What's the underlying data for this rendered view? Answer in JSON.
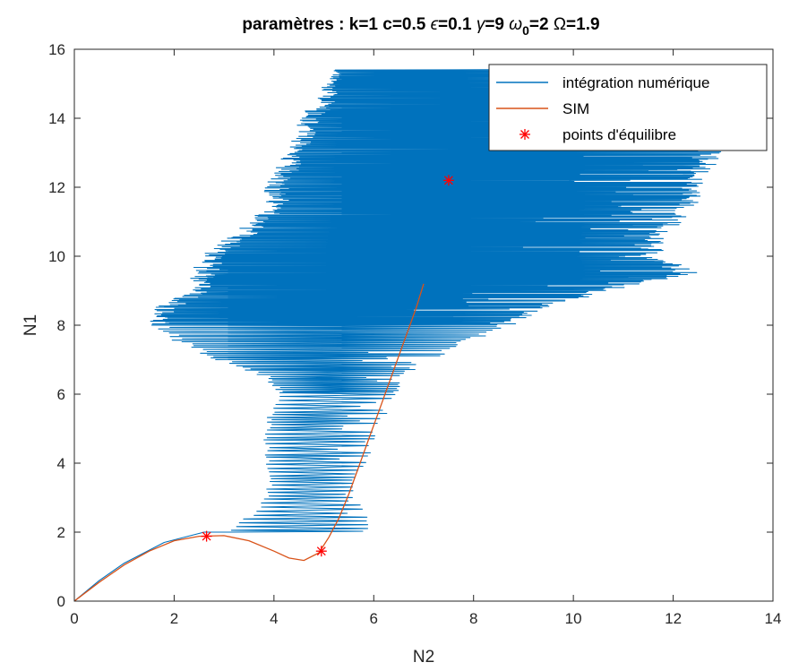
{
  "chart_data": {
    "type": "line",
    "title": {
      "prefix": "paramètres : k=1  c=0.5  ",
      "epsilon_symbol": "ϵ",
      "epsilon_value": "=0.1  ",
      "gamma_symbol": "γ",
      "gamma_value": "=9  ",
      "omega0_symbol": "ω",
      "omega0_sub": "0",
      "omega0_value": "=2  ",
      "Omega_symbol": "Ω",
      "Omega_value": "=1.9"
    },
    "xlabel": "N2",
    "ylabel": "N1",
    "xlim": [
      0,
      14
    ],
    "ylim": [
      0,
      16
    ],
    "xticks": [
      0,
      2,
      4,
      6,
      8,
      10,
      12,
      14
    ],
    "yticks": [
      0,
      2,
      4,
      6,
      8,
      10,
      12,
      14,
      16
    ],
    "grid": false,
    "legend_position": "top-right",
    "legend": [
      {
        "label": "intégration numérique",
        "color": "#0072BD",
        "marker": "line"
      },
      {
        "label": "SIM",
        "color": "#D95319",
        "marker": "line"
      },
      {
        "label": "points d'équilibre",
        "color": "#FF0000",
        "marker": "asterisk"
      }
    ],
    "series": [
      {
        "name": "intégration numérique",
        "color": "#0072BD",
        "style": "oscillating trajectory",
        "x": [
          0,
          0.5,
          1.0,
          1.8,
          2.6,
          3.2,
          3.8,
          4.4,
          5.0,
          5.3,
          5.5,
          5.5,
          5.6,
          5.7,
          5.8,
          5.9,
          6.1,
          6.3,
          6.5,
          6.8,
          7.0,
          7.4,
          7.8,
          8.2,
          8.6,
          9.0,
          9.5
        ],
        "y": [
          0,
          0.6,
          1.1,
          1.7,
          2.0,
          2.2,
          2.35,
          2.5,
          2.8,
          3.3,
          3.9,
          4.5,
          5.1,
          5.7,
          6.2,
          6.8,
          7.3,
          7.8,
          8.3,
          8.8,
          9.2,
          9.6,
          10.2,
          11.0,
          12.0,
          13.0,
          14.2
        ],
        "envelope": {
          "y": [
            2.0,
            2.5,
            3.0,
            3.5,
            4.0,
            4.5,
            5.0,
            5.5,
            6.0,
            6.5,
            7.0,
            7.5,
            8.0,
            8.5,
            9.0,
            9.5,
            10.0,
            10.5,
            11.0,
            11.5,
            12.0,
            12.5,
            13.0,
            13.5,
            14.0,
            14.5,
            15.0,
            15.4
          ],
          "x_min": [
            3.0,
            3.5,
            3.8,
            3.9,
            3.8,
            3.8,
            3.8,
            3.9,
            4.1,
            3.8,
            2.8,
            2.0,
            1.5,
            1.6,
            2.3,
            2.3,
            2.5,
            3.0,
            3.5,
            3.8,
            3.8,
            4.0,
            4.2,
            4.4,
            4.5,
            4.8,
            5.0,
            5.2
          ],
          "x_max": [
            6.0,
            5.9,
            5.6,
            5.6,
            5.9,
            6.0,
            6.1,
            6.3,
            6.5,
            6.6,
            7.2,
            8.0,
            8.8,
            9.5,
            10.8,
            12.5,
            11.8,
            11.8,
            12.2,
            12.5,
            12.6,
            12.8,
            13.0,
            11.5,
            12.0,
            13.8,
            10.0,
            9.0
          ]
        }
      },
      {
        "name": "SIM",
        "color": "#D95319",
        "x": [
          0,
          0.5,
          1.0,
          1.5,
          2.0,
          2.5,
          3.0,
          3.5,
          4.0,
          4.3,
          4.6,
          4.9,
          5.1,
          5.3,
          5.5,
          5.7,
          5.9,
          6.1,
          6.3,
          6.5,
          6.7,
          6.85,
          7.0
        ],
        "y": [
          0,
          0.55,
          1.05,
          1.45,
          1.75,
          1.88,
          1.9,
          1.75,
          1.45,
          1.25,
          1.18,
          1.4,
          1.85,
          2.4,
          3.1,
          3.9,
          4.7,
          5.5,
          6.3,
          7.1,
          7.9,
          8.5,
          9.2
        ]
      },
      {
        "name": "points d'équilibre",
        "color": "#FF0000",
        "marker": "asterisk",
        "x": [
          2.65,
          4.95,
          7.5
        ],
        "y": [
          1.88,
          1.45,
          12.2
        ]
      }
    ]
  }
}
